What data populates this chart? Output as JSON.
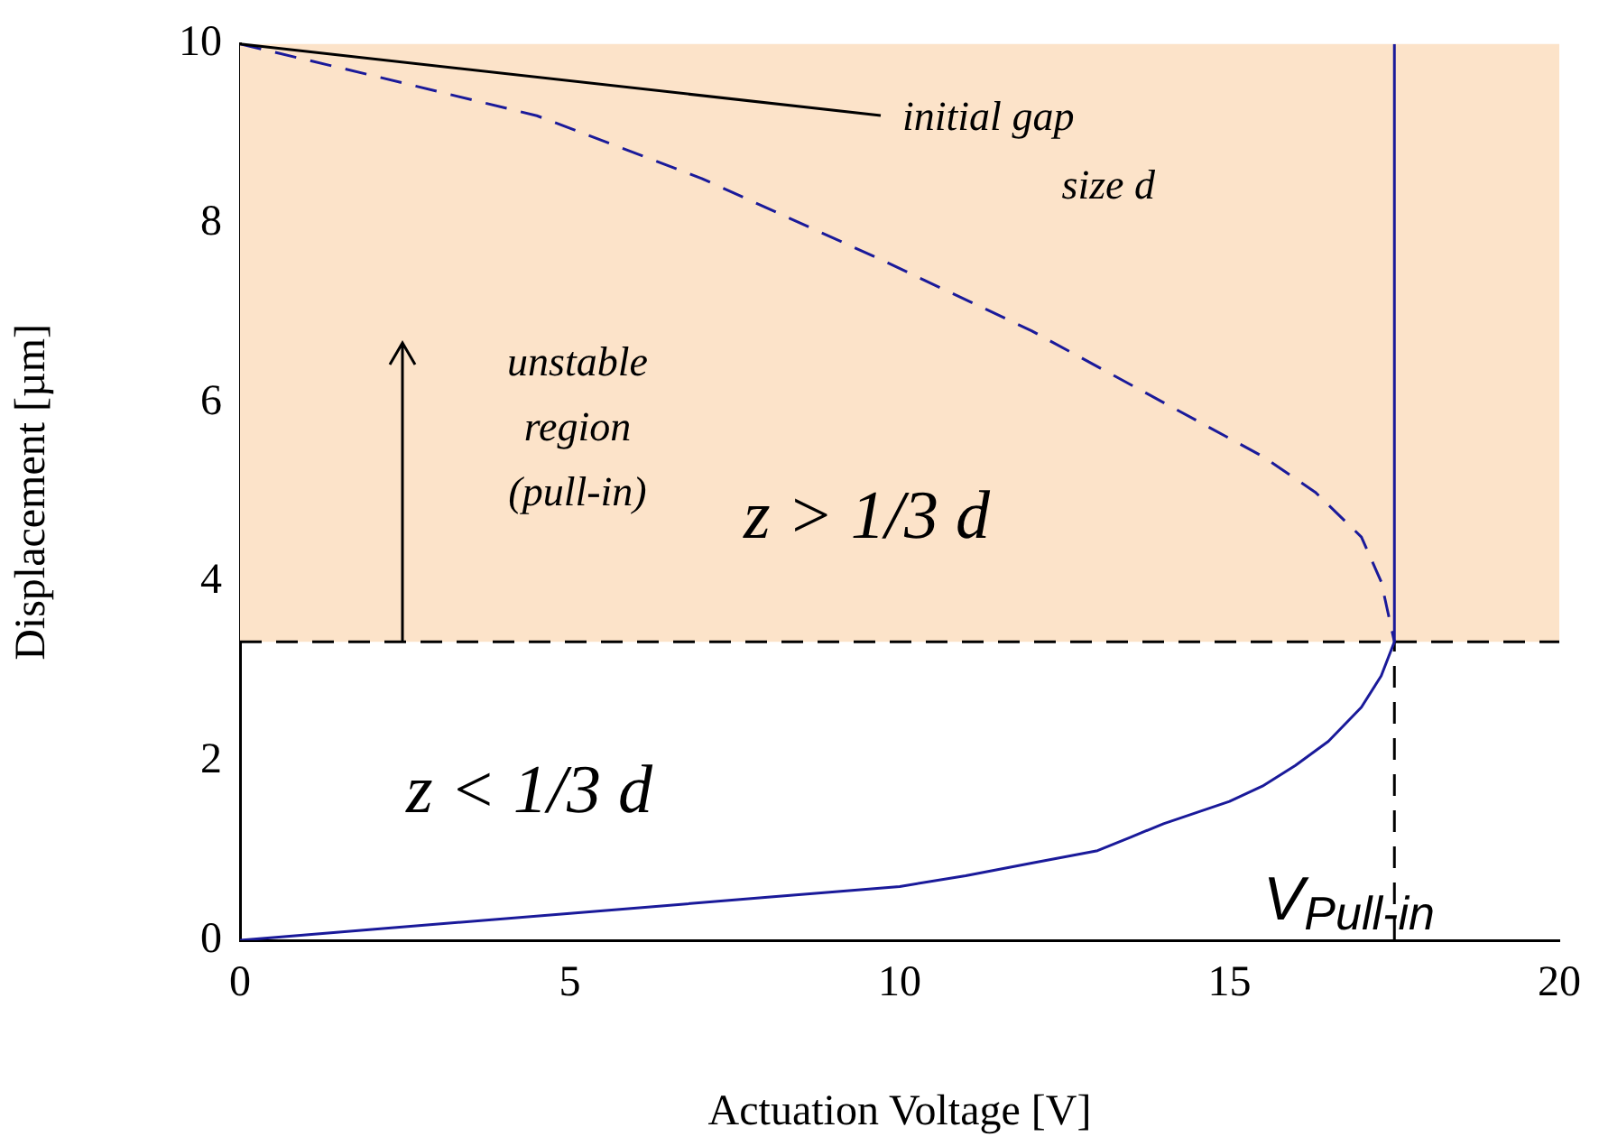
{
  "chart_data": {
    "type": "line",
    "xlabel": "Actuation Voltage [V]",
    "ylabel": "Displacement [µm]",
    "xlim": [
      0,
      20
    ],
    "xticks": [
      0,
      5,
      10,
      15,
      20
    ],
    "ylim": [
      0,
      10
    ],
    "yticks": [
      0,
      2,
      4,
      6,
      8,
      10
    ],
    "grid": false,
    "legend": false,
    "marker": "none",
    "series": [
      {
        "color": "#1a1a9a",
        "line_style": "solid",
        "x": [
          0,
          2,
          5,
          8,
          10,
          11,
          12,
          13,
          13.5,
          14,
          15,
          15.5,
          16,
          16.5,
          17,
          17.3,
          17.5,
          17.5
        ],
        "values": [
          0,
          0.12,
          0.3,
          0.48,
          0.6,
          0.72,
          0.86,
          1.0,
          1.15,
          1.3,
          1.55,
          1.72,
          1.95,
          2.22,
          2.6,
          2.95,
          3.33,
          10
        ]
      },
      {
        "color": "#1a1a9a",
        "line_style": "dashed",
        "x": [
          0,
          2,
          4.5,
          7,
          9.7,
          12,
          14,
          15.5,
          16.3,
          17,
          17.3,
          17.5
        ],
        "values": [
          10,
          9.65,
          9.2,
          8.5,
          7.6,
          6.8,
          6.0,
          5.4,
          5.0,
          4.5,
          4.0,
          3.33
        ]
      },
      {
        "color": "#000000",
        "line_style": "dashed",
        "x": [
          17.5,
          17.5
        ],
        "values": [
          0,
          3.33
        ]
      }
    ],
    "ref_lines": [
      {
        "axis": "y",
        "value": 3.33,
        "color": "#000000",
        "line_style": "dashed"
      }
    ],
    "bands": [
      {
        "axis": "y",
        "from": 3.33,
        "to": 10,
        "color": "#fce3c9"
      }
    ],
    "annotations": [
      {
        "text": "initial gap size d",
        "x": 0,
        "y": 10
      },
      "unstable region (pull-in)",
      "z > 1/3 d",
      "z < 1/3 d",
      "V$_{Pull-in}$"
    ]
  }
}
